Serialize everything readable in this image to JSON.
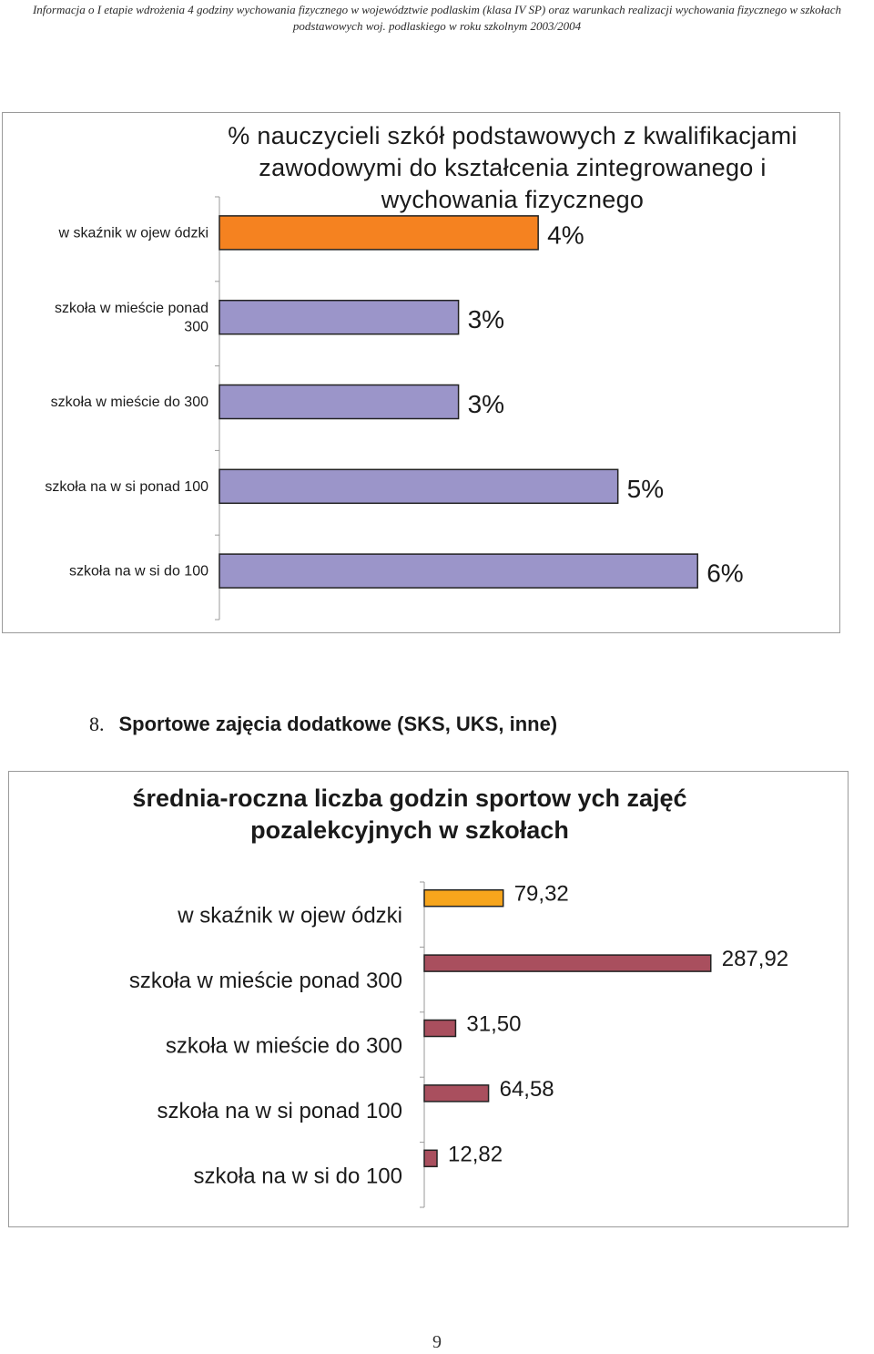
{
  "header": {
    "line1": "Informacja o I etapie wdrożenia 4 godziny wychowania fizycznego w województwie podlaskim (klasa IV SP) oraz  warunkach realizacji wychowania fizycznego w szkołach",
    "line2": "podstawowych woj. podlaskiego w roku szkolnym 2003/2004"
  },
  "section": {
    "number": "8.",
    "title": "Sportowe zajęcia dodatkowe (SKS, UKS, inne)"
  },
  "page_number": "9",
  "chart_data": [
    {
      "type": "bar",
      "orientation": "horizontal",
      "title": "% nauczycieli szkół podstawowych z kwalifikacjami zawodowymi do kształcenia zintegrowanego i wychowania fizycznego",
      "categories": [
        "w skaźnik w ojew ódzki",
        "szkoła w  mieście ponad 300",
        "szkoła w  mieście do 300",
        "szkoła na w si ponad 100",
        "szkoła na w si do 100"
      ],
      "values": [
        4,
        3,
        3,
        5,
        6
      ],
      "value_labels": [
        "4%",
        "3%",
        "3%",
        "5%",
        "6%"
      ],
      "xlim": [
        0,
        6.9
      ],
      "colors": [
        "#f58220",
        "#9b95c9",
        "#9b95c9",
        "#9b95c9",
        "#9b95c9"
      ],
      "grid": false,
      "legend": "none"
    },
    {
      "type": "bar",
      "orientation": "horizontal",
      "title": "średnia-roczna  liczba godzin   sportow ych zajęć pozalekcyjnych w szkołach",
      "categories": [
        "w skaźnik w ojew ódzki",
        "szkoła w  mieście ponad 300",
        "szkoła w  mieście do 300",
        "szkoła na w si ponad 100",
        "szkoła na w si do 100"
      ],
      "values": [
        79.32,
        287.92,
        31.5,
        64.58,
        12.82
      ],
      "value_labels": [
        "79,32",
        "287,92",
        "31,50",
        "64,58",
        "12,82"
      ],
      "xlim": [
        0,
        365
      ],
      "colors": [
        "#f7a51c",
        "#a94f5e",
        "#a94f5e",
        "#a94f5e",
        "#a94f5e"
      ],
      "grid": false,
      "legend": "none"
    }
  ]
}
